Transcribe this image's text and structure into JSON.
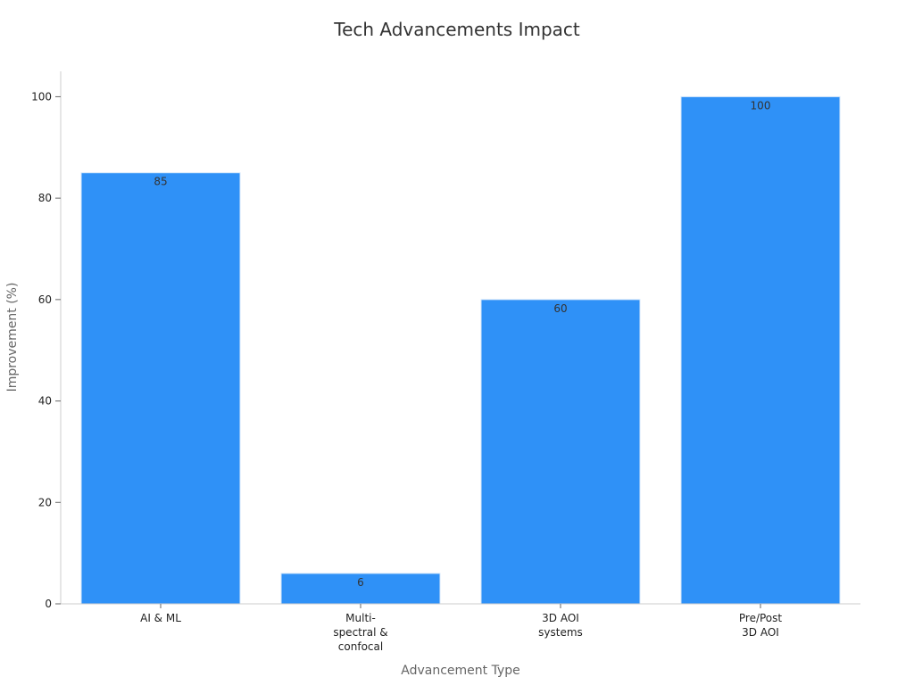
{
  "chart_data": {
    "type": "bar",
    "title": "Tech Advancements Impact",
    "xlabel": "Advancement Type",
    "ylabel": "Improvement (%)",
    "categories": [
      [
        "AI & ML"
      ],
      [
        "Multi-",
        "spectral &",
        "confocal"
      ],
      [
        "3D AOI",
        "systems"
      ],
      [
        "Pre/Post",
        "3D AOI"
      ]
    ],
    "values": [
      85,
      6,
      60,
      100
    ],
    "data_labels": [
      "85",
      "6",
      "60",
      "100"
    ],
    "ylim": [
      0,
      105
    ],
    "yticks": [
      0,
      20,
      40,
      60,
      80,
      100
    ],
    "grid": false,
    "bar_color": "#2f91f7",
    "bar_edge_color": "#d4e7fb"
  }
}
